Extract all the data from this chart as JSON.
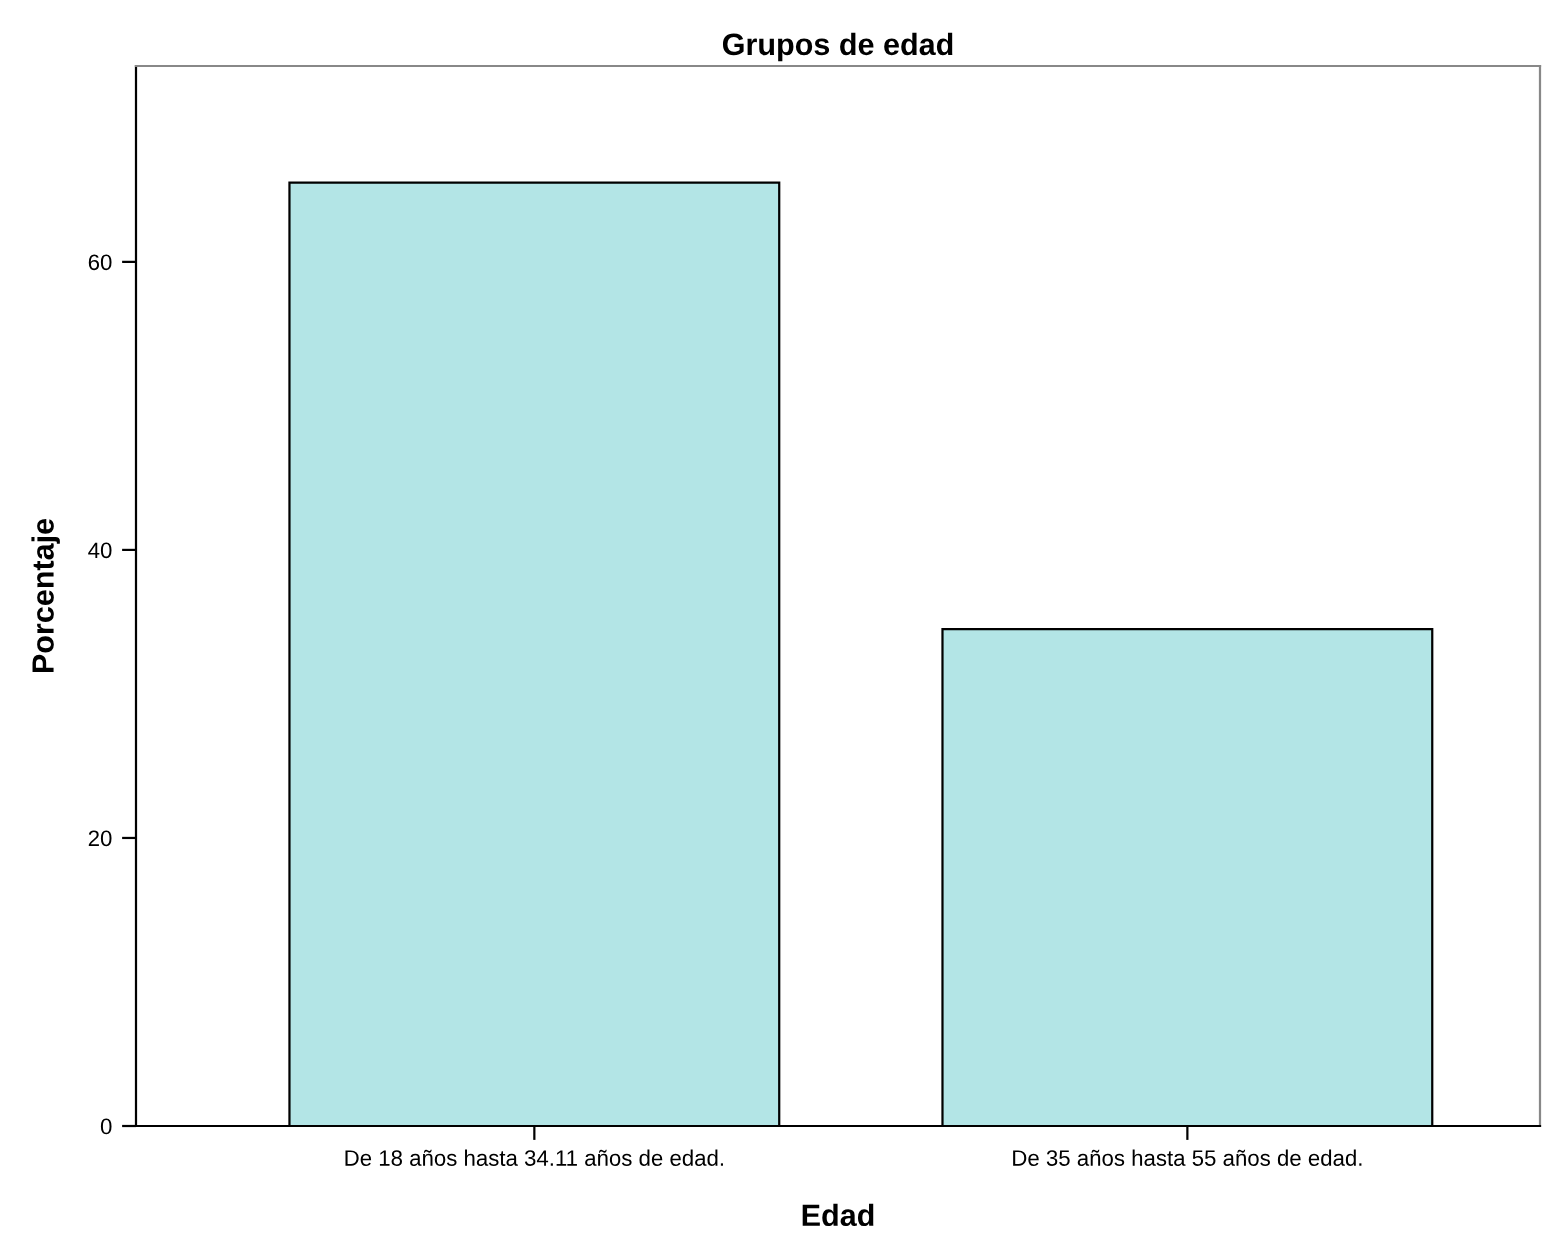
{
  "chart_data": {
    "type": "bar",
    "title": "Grupos de edad",
    "xlabel": "Edad",
    "ylabel": "Porcentaje",
    "categories": [
      "De 18 años hasta 34.11 años de edad.",
      "De 35 años hasta 55 años de edad."
    ],
    "values": [
      65.5,
      34.5
    ],
    "color": "#b3e5e6",
    "ylim": [
      0,
      73.6
    ],
    "yticks": [
      0,
      20,
      40,
      60
    ],
    "grid": false,
    "legend": false
  }
}
